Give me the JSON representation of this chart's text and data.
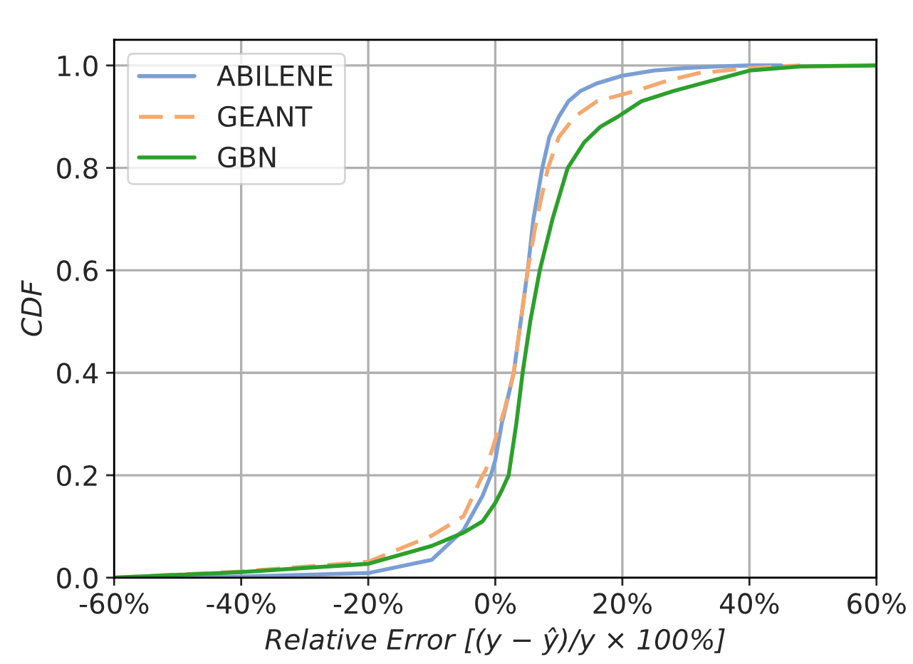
{
  "chart_data": {
    "type": "line",
    "xlabel": "Relative Error [(y − ŷ)/y × 100%]",
    "ylabel": "CDF",
    "legend": "top left",
    "grid": true,
    "xlim": [
      -60,
      60
    ],
    "ylim": [
      0,
      1.05
    ],
    "xticks": [
      {
        "value": -60,
        "label": "-60%"
      },
      {
        "value": -40,
        "label": "-40%"
      },
      {
        "value": -20,
        "label": "-20%"
      },
      {
        "value": 0,
        "label": "0%"
      },
      {
        "value": 20,
        "label": "20%"
      },
      {
        "value": 40,
        "label": "40%"
      },
      {
        "value": 60,
        "label": "60%"
      }
    ],
    "yticks": [
      {
        "value": 0,
        "label": "0.0"
      },
      {
        "value": 0.2,
        "label": "0.2"
      },
      {
        "value": 0.4,
        "label": "0.4"
      },
      {
        "value": 0.6,
        "label": "0.6"
      },
      {
        "value": 0.8,
        "label": "0.8"
      },
      {
        "value": 1,
        "label": "1.0"
      }
    ],
    "series": [
      {
        "name": "ABILENE",
        "color": "#7b9fd4",
        "line_style": "solid",
        "x": [
          -60,
          -40,
          -20,
          -10,
          -5,
          -2,
          -0.7,
          0,
          1,
          2.9,
          4,
          5.1,
          6,
          7.4,
          8.5,
          10,
          11.5,
          13.4,
          16,
          20,
          25,
          30,
          35,
          40,
          45
        ],
        "values": [
          0,
          0.002,
          0.009,
          0.035,
          0.093,
          0.16,
          0.2,
          0.23,
          0.3,
          0.4,
          0.5,
          0.6,
          0.7,
          0.8,
          0.86,
          0.9,
          0.93,
          0.95,
          0.965,
          0.98,
          0.99,
          0.995,
          0.998,
          1,
          1
        ]
      },
      {
        "name": "GEANT",
        "color": "#f5a86e",
        "line_style": "dashed",
        "x": [
          -60,
          -40,
          -20,
          -10,
          -5,
          -2,
          -1.5,
          0,
          1.5,
          2.9,
          4,
          5.1,
          6.5,
          8.3,
          10,
          12.5,
          16,
          22,
          27,
          32,
          40,
          48
        ],
        "values": [
          0,
          0.012,
          0.031,
          0.082,
          0.12,
          0.2,
          0.21,
          0.27,
          0.33,
          0.4,
          0.5,
          0.6,
          0.7,
          0.8,
          0.86,
          0.9,
          0.93,
          0.95,
          0.97,
          0.985,
          0.995,
          1
        ]
      },
      {
        "name": "GBN",
        "color": "#2ca02c",
        "line_style": "solid",
        "x": [
          -60,
          -40,
          -20,
          -10,
          -5,
          -2,
          0,
          1,
          2.1,
          3.3,
          4.3,
          5.5,
          7,
          9,
          11.4,
          14,
          16.5,
          19.3,
          23,
          28,
          34,
          40,
          48,
          60
        ],
        "values": [
          0,
          0.011,
          0.027,
          0.062,
          0.088,
          0.11,
          0.146,
          0.17,
          0.2,
          0.3,
          0.4,
          0.5,
          0.6,
          0.7,
          0.8,
          0.85,
          0.88,
          0.9,
          0.93,
          0.95,
          0.97,
          0.99,
          0.998,
          1
        ]
      }
    ]
  }
}
